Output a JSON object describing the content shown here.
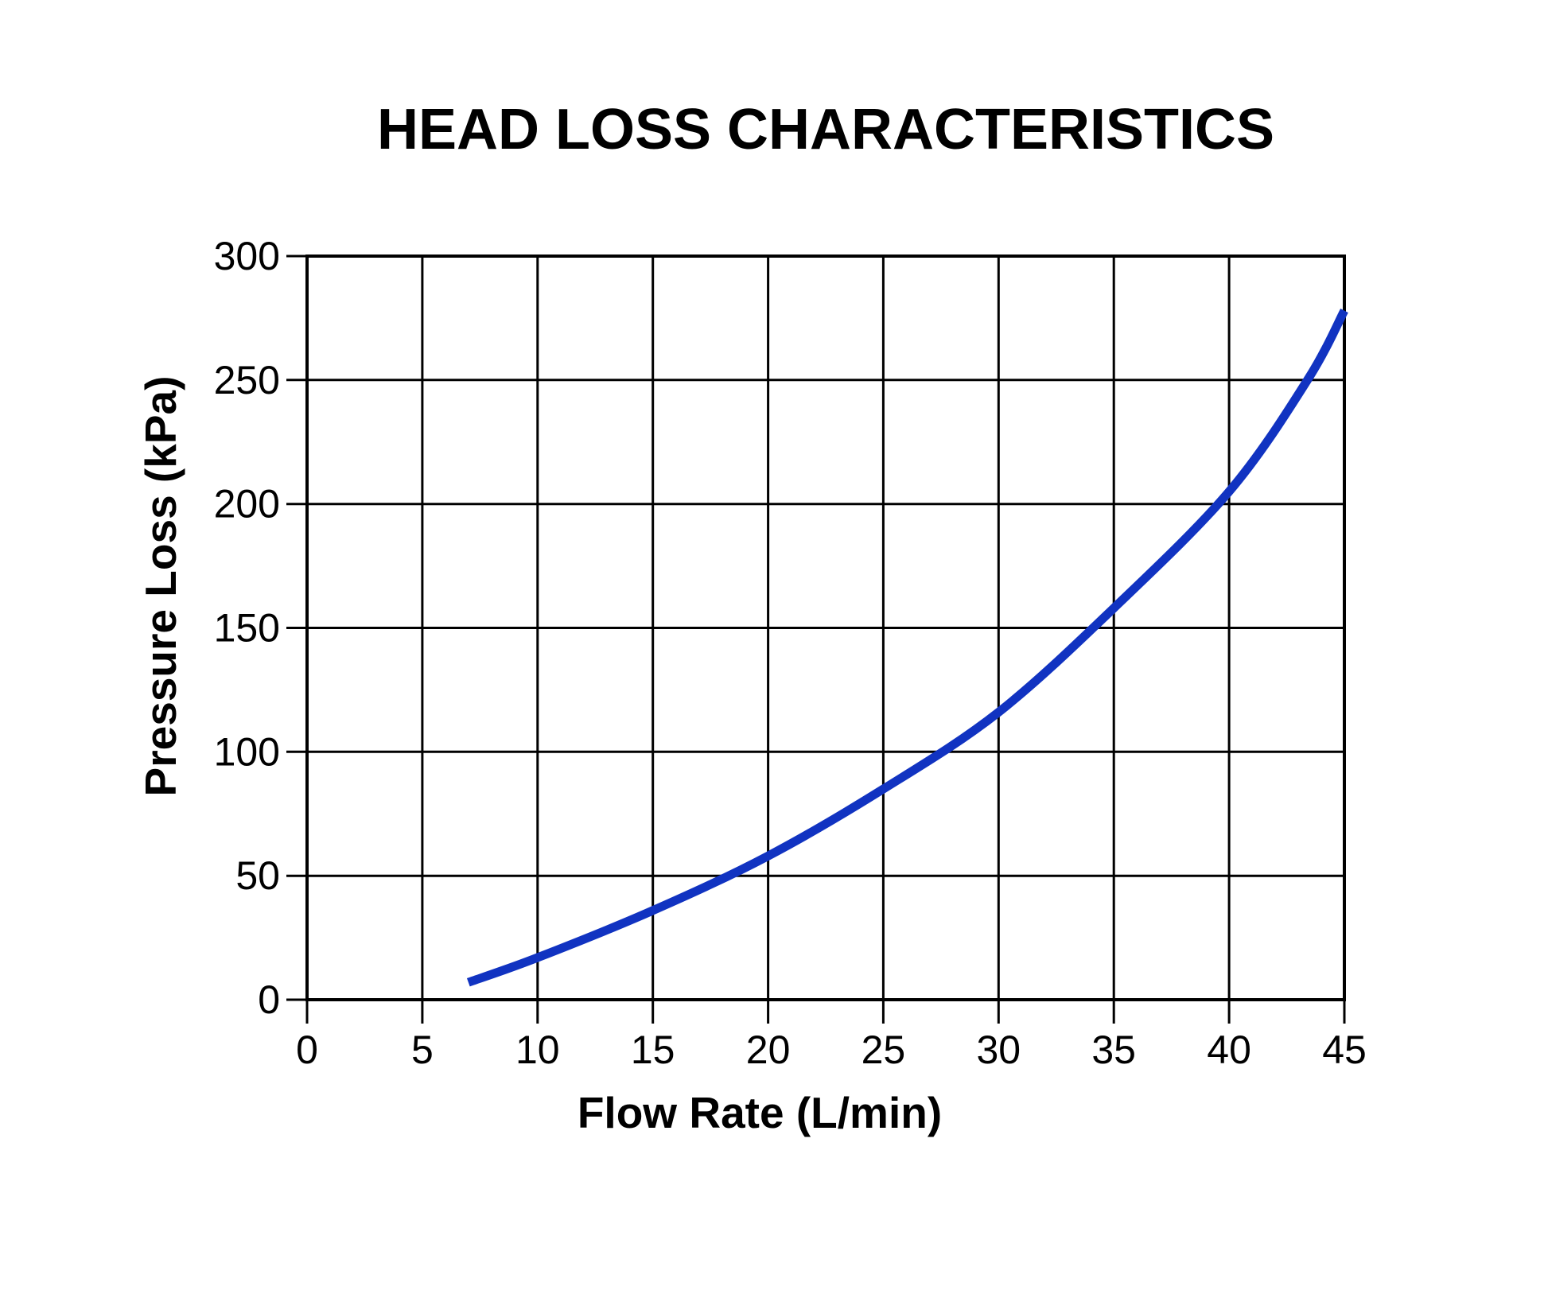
{
  "page": {
    "background": "#ffffff",
    "text_color": "#000000"
  },
  "chart_data": {
    "type": "line",
    "title": "HEAD LOSS CHARACTERISTICS",
    "xlabel": "Flow Rate (L/min)",
    "ylabel": "Pressure Loss (kPa)",
    "xlim": [
      0,
      45
    ],
    "ylim": [
      0,
      300
    ],
    "x_ticks": [
      0,
      5,
      10,
      15,
      20,
      25,
      30,
      35,
      40,
      45
    ],
    "y_ticks": [
      0,
      50,
      100,
      150,
      200,
      250,
      300
    ],
    "grid": true,
    "legend": false,
    "axis_color": "#000000",
    "series": [
      {
        "name": "head-loss-curve",
        "color": "#1133c1",
        "points": [
          [
            7,
            7
          ],
          [
            10,
            17
          ],
          [
            15,
            36
          ],
          [
            20,
            58
          ],
          [
            25,
            85
          ],
          [
            30,
            116
          ],
          [
            35,
            158
          ],
          [
            40,
            205
          ],
          [
            43.4,
            250
          ],
          [
            45,
            278
          ]
        ]
      }
    ]
  }
}
